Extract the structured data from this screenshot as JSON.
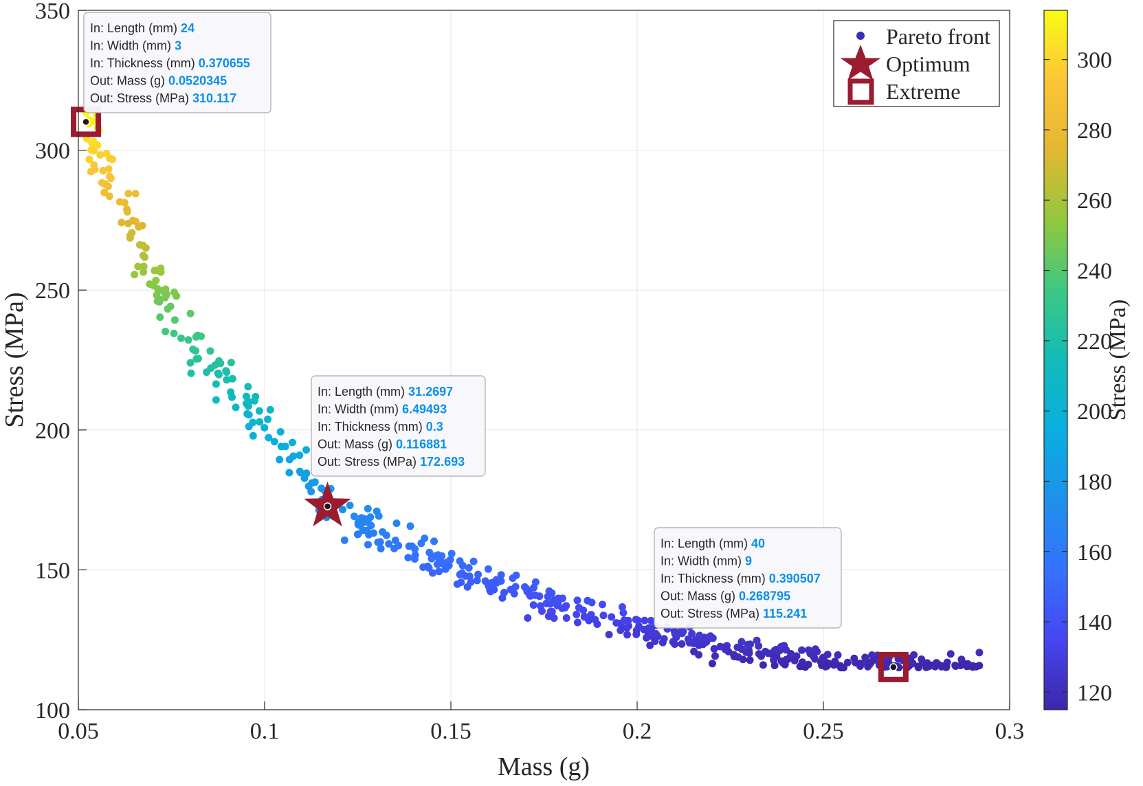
{
  "chart_data": {
    "type": "scatter",
    "xlabel": "Mass (g)",
    "ylabel": "Stress (MPa)",
    "xlim": [
      0.05,
      0.3
    ],
    "ylim": [
      100,
      350
    ],
    "x_ticks": [
      "0.05",
      "0.1",
      "0.15",
      "0.2",
      "0.25",
      "0.3"
    ],
    "y_ticks": [
      "100",
      "150",
      "200",
      "250",
      "300",
      "350"
    ],
    "grid": true,
    "legend_position": "top-right",
    "legend": [
      {
        "label": "Pareto front",
        "marker": "dot",
        "color": "#3a2fb5"
      },
      {
        "label": "Optimum",
        "marker": "star",
        "color": "#9b1b30"
      },
      {
        "label": "Extreme",
        "marker": "square",
        "color": "#9b1b30"
      }
    ],
    "colorbar": {
      "label": "Stress (MPa)",
      "range": [
        115,
        314
      ],
      "ticks": [
        "120",
        "140",
        "160",
        "180",
        "200",
        "220",
        "240",
        "260",
        "280",
        "300"
      ],
      "colormap": "parula"
    },
    "pareto_front_curve": {
      "x": [
        0.052,
        0.06,
        0.07,
        0.08,
        0.09,
        0.1,
        0.11,
        0.117,
        0.13,
        0.15,
        0.17,
        0.19,
        0.21,
        0.23,
        0.25,
        0.27,
        0.293
      ],
      "y": [
        310,
        283,
        255,
        232,
        215,
        201,
        185,
        173,
        164,
        151,
        141,
        133,
        126,
        121,
        117,
        116,
        116
      ]
    },
    "pareto_point_count": 520,
    "optimum": {
      "x": 0.116881,
      "y": 172.693
    },
    "extremes": [
      {
        "x": 0.0520345,
        "y": 310.117
      },
      {
        "x": 0.268795,
        "y": 115.241
      }
    ],
    "datatips": [
      {
        "at": {
          "x": 0.0520345,
          "y": 310.117
        },
        "rows": [
          {
            "label": "In: Length (mm)",
            "value": "24"
          },
          {
            "label": "In: Width (mm)",
            "value": "3"
          },
          {
            "label": "In: Thickness (mm)",
            "value": "0.370655"
          },
          {
            "label": "Out: Mass (g)",
            "value": "0.0520345"
          },
          {
            "label": "Out: Stress (MPa)",
            "value": "310.117"
          }
        ]
      },
      {
        "at": {
          "x": 0.116881,
          "y": 172.693
        },
        "rows": [
          {
            "label": "In: Length (mm)",
            "value": "31.2697"
          },
          {
            "label": "In: Width (mm)",
            "value": "6.49493"
          },
          {
            "label": "In: Thickness (mm)",
            "value": "0.3"
          },
          {
            "label": "Out: Mass (g)",
            "value": "0.116881"
          },
          {
            "label": "Out: Stress (MPa)",
            "value": "172.693"
          }
        ]
      },
      {
        "at": {
          "x": 0.268795,
          "y": 115.241
        },
        "rows": [
          {
            "label": "In: Length (mm)",
            "value": "40"
          },
          {
            "label": "In: Width (mm)",
            "value": "9"
          },
          {
            "label": "In: Thickness (mm)",
            "value": "0.390507"
          },
          {
            "label": "Out: Mass (g)",
            "value": "0.268795"
          },
          {
            "label": "Out: Stress (MPa)",
            "value": "115.241"
          }
        ]
      }
    ]
  }
}
